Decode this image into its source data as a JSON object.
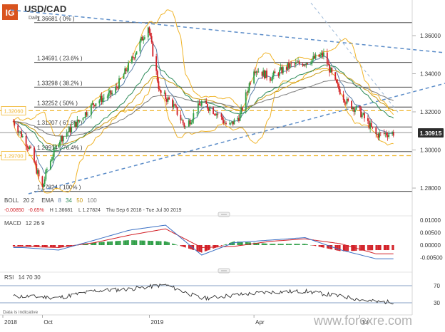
{
  "header": {
    "logo_text": "IG",
    "symbol": "USD/CAD",
    "timeframe": "Daily"
  },
  "colors": {
    "accent": "#d9531e",
    "bull": "#2e9e46",
    "bear": "#d21f26",
    "bollinger": "#f0b429",
    "ema8": "#5a7fa8",
    "ema34": "#2b8a57",
    "ema50": "#c99a14",
    "ema100": "#7c7c7c",
    "trendline": "#5b8cc8",
    "fib_dash": "#f0b429",
    "macd_line": "#3a6fc4",
    "signal_line": "#d21f26",
    "rsi_line": "#333333",
    "price_tag_bg": "#2c2c2c"
  },
  "legend": {
    "boll": "BOLL",
    "boll_params": "20 2",
    "ema": "EMA",
    "ema_periods": [
      "8",
      "34",
      "50",
      "100"
    ],
    "change_abs": "-0.00850",
    "change_pct": "-0.65%",
    "high": "H 1.36681",
    "low": "L 1.27824",
    "range": "Thu Sep 6 2018 - Tue Jul 30 2019"
  },
  "fib_levels": [
    {
      "price": 1.36681,
      "label": "1.36681 ( 0% )"
    },
    {
      "price": 1.34591,
      "label": "1.34591 ( 23.6% )"
    },
    {
      "price": 1.33298,
      "label": "1.33298 ( 38.2% )"
    },
    {
      "price": 1.32252,
      "label": "1.32252 ( 50% )"
    },
    {
      "price": 1.31207,
      "label": "1.31207 ( 61.8% )"
    },
    {
      "price": 1.29914,
      "label": "1.29914 ( 76.4% )"
    },
    {
      "price": 1.27824,
      "label": "1.27824 ( 100% )"
    }
  ],
  "horizontal_levels": [
    {
      "price": 1.3206,
      "label": "1.32060"
    },
    {
      "price": 1.297,
      "label": "1.29700"
    }
  ],
  "current_price": {
    "price": 1.30915,
    "label": "1.30915"
  },
  "price_axis_ticks": [
    "1.36000",
    "1.34000",
    "1.32000",
    "1.30000",
    "1.28000"
  ],
  "time_axis_ticks": [
    "2018",
    "Oct",
    "2019",
    "Apr",
    "Jul"
  ],
  "macd": {
    "label": "MACD",
    "params": "12 26 9",
    "ticks": [
      "0.01000",
      "0.00500",
      "0.00000",
      "-0.00500"
    ]
  },
  "rsi": {
    "label": "RSI",
    "params": "14 70 30",
    "ticks": [
      "70",
      "30"
    ]
  },
  "footer": {
    "disclaimer": "Data is indicative",
    "watermark": "www.forexre.com"
  },
  "chart_data": [
    {
      "type": "line",
      "name": "USD/CAD daily price (approximate closing path)",
      "x": [
        "2018-09-06",
        "2018-09-20",
        "2018-10-01",
        "2018-10-05",
        "2018-10-15",
        "2018-11-01",
        "2018-11-15",
        "2018-12-01",
        "2018-12-15",
        "2018-12-31",
        "2019-01-10",
        "2019-01-20",
        "2019-02-01",
        "2019-02-15",
        "2019-03-01",
        "2019-03-10",
        "2019-03-20",
        "2019-04-01",
        "2019-04-15",
        "2019-05-01",
        "2019-05-15",
        "2019-05-31",
        "2019-06-10",
        "2019-06-20",
        "2019-07-01",
        "2019-07-15",
        "2019-07-30"
      ],
      "y": [
        1.315,
        1.301,
        1.28,
        1.29,
        1.305,
        1.315,
        1.325,
        1.33,
        1.345,
        1.365,
        1.33,
        1.325,
        1.312,
        1.325,
        1.319,
        1.312,
        1.318,
        1.343,
        1.338,
        1.344,
        1.346,
        1.35,
        1.335,
        1.325,
        1.32,
        1.308,
        1.309
      ],
      "ylim": [
        1.276,
        1.373
      ],
      "fibonacci_retracement": {
        "high": 1.36681,
        "low": 1.27824
      },
      "last_price": 1.30915
    },
    {
      "type": "line",
      "name": "MACD 12 26 9",
      "ylim": [
        -0.0065,
        0.0115
      ],
      "x": [
        "2018-09",
        "2018-10",
        "2018-11",
        "2018-12",
        "2019-01",
        "2019-02",
        "2019-03",
        "2019-04",
        "2019-05",
        "2019-06",
        "2019-07"
      ],
      "series": [
        {
          "name": "MACD",
          "values": [
            -0.001,
            -0.002,
            0.002,
            0.006,
            0.008,
            -0.004,
            0.001,
            0.002,
            0.003,
            -0.002,
            -0.0055
          ]
        },
        {
          "name": "Signal",
          "values": [
            -0.0005,
            -0.001,
            0.001,
            0.004,
            0.0065,
            -0.001,
            -0.0005,
            0.0015,
            0.0025,
            0.0005,
            -0.0035
          ]
        }
      ]
    },
    {
      "type": "line",
      "name": "RSI 14 70 30",
      "ylim": [
        20,
        80
      ],
      "x": [
        "2018-09",
        "2018-10",
        "2018-11",
        "2018-12",
        "2019-01",
        "2019-02",
        "2019-03",
        "2019-04",
        "2019-05",
        "2019-06",
        "2019-07"
      ],
      "series": [
        {
          "name": "RSI",
          "values": [
            45,
            42,
            58,
            62,
            72,
            40,
            48,
            55,
            57,
            45,
            32
          ]
        }
      ]
    }
  ]
}
